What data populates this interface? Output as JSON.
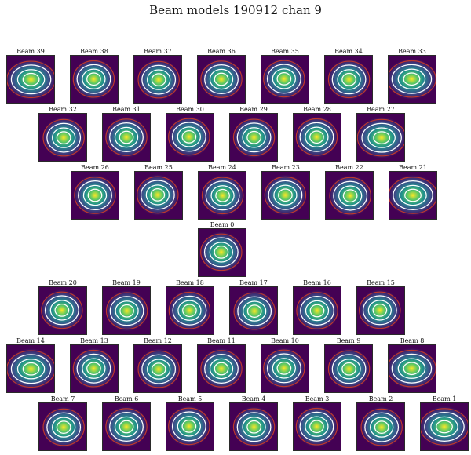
{
  "title": "Beam models 190912 chan 9",
  "colors": {
    "background_dark": "#440154",
    "blue": "#3b528b",
    "teal": "#21918c",
    "green": "#5ec962",
    "yellow": "#fde725",
    "contour_white": "#ffffff",
    "contour_red": "#c0392b"
  },
  "rows": [
    {
      "beams": [
        "Beam 39",
        "Beam 38",
        "Beam 37",
        "Beam 36",
        "Beam 35",
        "Beam 34",
        "Beam 33"
      ]
    },
    {
      "beams": [
        "Beam 32",
        "Beam 31",
        "Beam 30",
        "Beam 29",
        "Beam 28",
        "Beam 27"
      ]
    },
    {
      "beams": [
        "Beam 26",
        "Beam 25",
        "Beam 24",
        "Beam 23",
        "Beam 22",
        "Beam 21"
      ]
    },
    {
      "beams": [
        "Beam 0"
      ]
    },
    {
      "beams": [
        "Beam 20",
        "Beam 19",
        "Beam 18",
        "Beam 17",
        "Beam 16",
        "Beam 15"
      ]
    },
    {
      "beams": [
        "Beam 14",
        "Beam 13",
        "Beam 12",
        "Beam 11",
        "Beam 10",
        "Beam 9",
        "Beam 8"
      ]
    },
    {
      "beams": [
        "Beam 7",
        "Beam 6",
        "Beam 5",
        "Beam 4",
        "Beam 3",
        "Beam 2",
        "Beam 1"
      ]
    }
  ]
}
